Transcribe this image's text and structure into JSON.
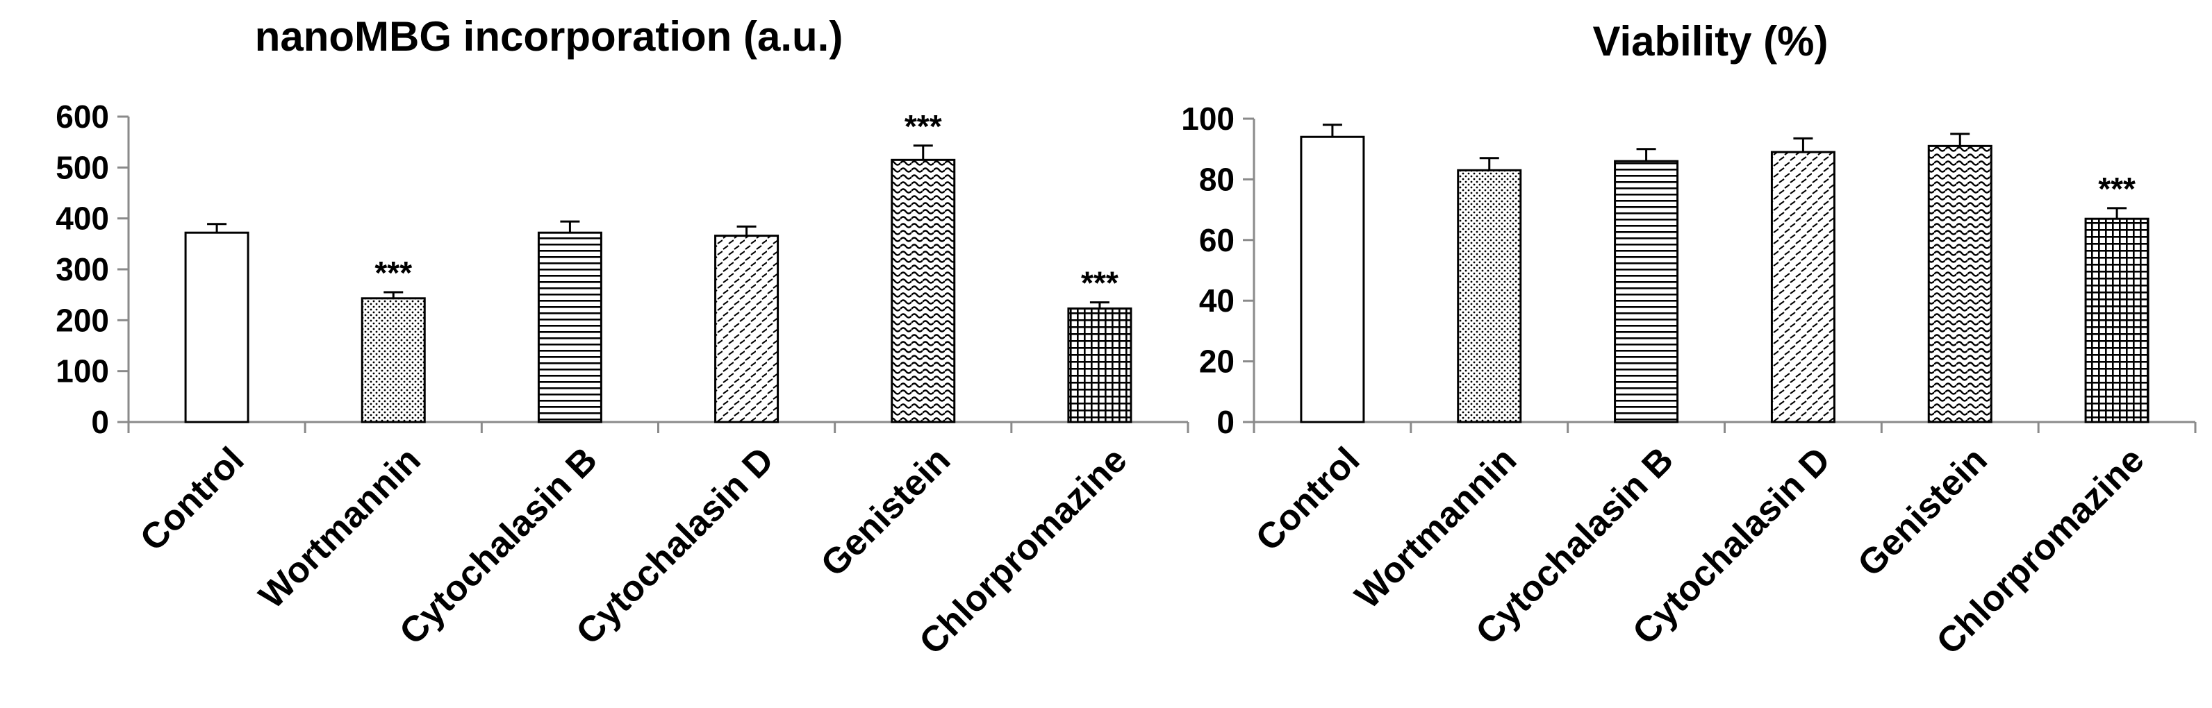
{
  "chart_data": [
    {
      "type": "bar",
      "title": "nanoMBG incorporation (a.u.)",
      "xlabel": "",
      "ylabel": "",
      "categories": [
        "Control",
        "Wortmannin",
        "Cytochalasin B",
        "Cytochalasin D",
        "Genistein",
        "Chlorpromazine"
      ],
      "values": [
        372,
        243,
        372,
        366,
        515,
        223
      ],
      "errors": [
        17,
        12,
        22,
        18,
        28,
        12
      ],
      "patterns": [
        "blank",
        "dots",
        "hlines",
        "dashes",
        "waves",
        "grid"
      ],
      "significance": [
        "",
        "***",
        "",
        "",
        "***",
        "***"
      ],
      "ylim": [
        0,
        600
      ],
      "yticks": [
        "0",
        "100",
        "200",
        "300",
        "400",
        "500",
        "600"
      ],
      "grid": false
    },
    {
      "type": "bar",
      "title": "Viability (%)",
      "xlabel": "",
      "ylabel": "",
      "categories": [
        "Control",
        "Wortmannin",
        "Cytochalasin B",
        "Cytochalasin D",
        "Genistein",
        "Chlorpromazine"
      ],
      "values": [
        94,
        83,
        86,
        89,
        91,
        67
      ],
      "errors": [
        4,
        4,
        4,
        4.5,
        4,
        3.5
      ],
      "patterns": [
        "blank",
        "dots",
        "hlines",
        "dashes",
        "waves",
        "grid"
      ],
      "significance": [
        "",
        "",
        "",
        "",
        "",
        "***"
      ],
      "ylim": [
        0,
        100
      ],
      "yticks": [
        "0",
        "20",
        "40",
        "60",
        "80",
        "100"
      ],
      "grid": false
    }
  ]
}
